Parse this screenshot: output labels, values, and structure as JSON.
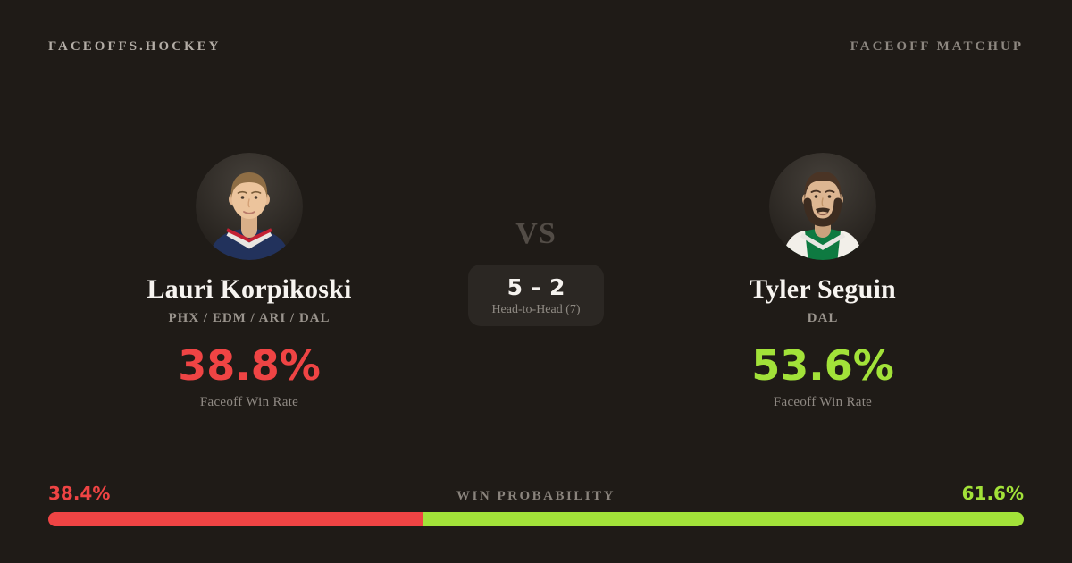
{
  "header": {
    "brand": "FACEOFFS.HOCKEY",
    "page_label": "FACEOFF MATCHUP"
  },
  "left_player": {
    "name": "Lauri Korpikoski",
    "teams": "PHX / EDM / ARI / DAL",
    "faceoff_win_rate": "38.8%",
    "rate_label": "Faceoff Win Rate"
  },
  "right_player": {
    "name": "Tyler Seguin",
    "teams": "DAL",
    "faceoff_win_rate": "53.6%",
    "rate_label": "Faceoff Win Rate"
  },
  "matchup": {
    "vs_label": "VS",
    "head_to_head_score": "5 – 2",
    "head_to_head_label": "Head-to-Head (7)"
  },
  "win_probability": {
    "label": "WIN PROBABILITY",
    "left_label": "38.4%",
    "right_label": "61.6%",
    "left_percent": 38.4,
    "right_percent": 61.6
  },
  "colors": {
    "red": "#ef4444",
    "green": "#a2e239",
    "background": "#1f1b17",
    "panel": "#2b2723"
  }
}
